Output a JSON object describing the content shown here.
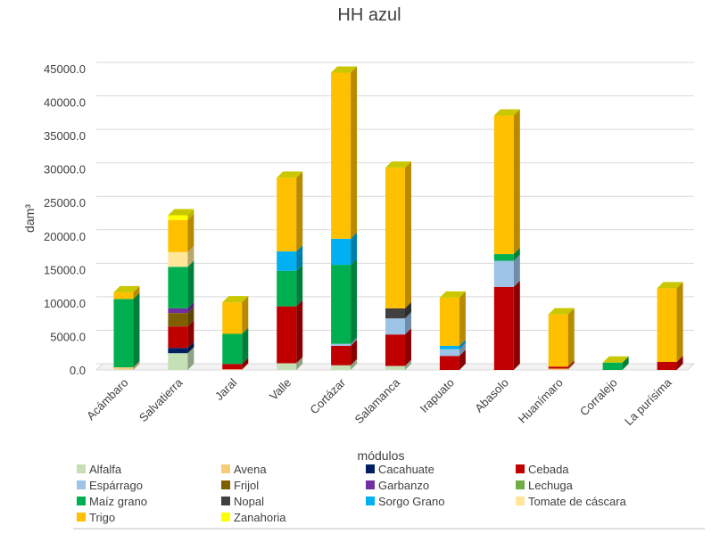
{
  "chart_data": {
    "type": "bar",
    "stacked": true,
    "title": "HH azul",
    "xlabel": "módulos",
    "ylabel": "dam³",
    "ylim": [
      0,
      45000
    ],
    "yticks": [
      "0.0",
      "5000.0",
      "10000.0",
      "15000.0",
      "20000.0",
      "25000.0",
      "30000.0",
      "35000.0",
      "40000.0",
      "45000.0"
    ],
    "grid": true,
    "legend_position": "bottom",
    "categories": [
      "Acámbaro",
      "Salvatierra",
      "Jaral",
      "Valle",
      "Cortázar",
      "Salamanca",
      "Irapuato",
      "Abasolo",
      "Huanímaro",
      "Corralejo",
      "La purísima"
    ],
    "series": [
      {
        "name": "Alfalfa",
        "color": "#c5e0b4",
        "values": [
          100,
          2500,
          0,
          1000,
          700,
          600,
          0,
          0,
          0,
          0,
          0
        ]
      },
      {
        "name": "Avena",
        "color": "#f8cb7c",
        "values": [
          300,
          0,
          100,
          0,
          0,
          0,
          0,
          0,
          200,
          0,
          0
        ]
      },
      {
        "name": "Cacahuate",
        "color": "#002060",
        "values": [
          0,
          800,
          0,
          0,
          0,
          0,
          0,
          0,
          0,
          0,
          0
        ]
      },
      {
        "name": "Cebada",
        "color": "#c00000",
        "values": [
          0,
          3200,
          800,
          8500,
          2900,
          4700,
          2100,
          12400,
          300,
          0,
          1200
        ]
      },
      {
        "name": "Espárrago",
        "color": "#9dc3e6",
        "values": [
          0,
          0,
          0,
          0,
          300,
          2400,
          1000,
          3900,
          0,
          0,
          0
        ]
      },
      {
        "name": "Frijol",
        "color": "#7f6000",
        "values": [
          0,
          2000,
          0,
          0,
          0,
          0,
          0,
          0,
          0,
          0,
          0
        ]
      },
      {
        "name": "Garbanzo",
        "color": "#7030a0",
        "values": [
          0,
          700,
          0,
          0,
          0,
          0,
          0,
          0,
          0,
          0,
          0
        ]
      },
      {
        "name": "Lechuga",
        "color": "#70ad47",
        "values": [
          0,
          0,
          0,
          0,
          0,
          0,
          0,
          0,
          0,
          0,
          0
        ]
      },
      {
        "name": "Maíz grano",
        "color": "#00b050",
        "values": [
          10200,
          6200,
          4500,
          5300,
          11800,
          0,
          0,
          1000,
          0,
          1100,
          0
        ]
      },
      {
        "name": "Nopal",
        "color": "#404040",
        "values": [
          0,
          0,
          0,
          0,
          0,
          1500,
          0,
          0,
          0,
          0,
          0
        ]
      },
      {
        "name": "Sorgo Grano",
        "color": "#00b0f0",
        "values": [
          0,
          0,
          0,
          2900,
          3900,
          0,
          500,
          0,
          0,
          0,
          0
        ]
      },
      {
        "name": "Tomate de cáscara",
        "color": "#ffe699",
        "values": [
          0,
          2200,
          0,
          0,
          0,
          0,
          0,
          0,
          0,
          0,
          0
        ]
      },
      {
        "name": "Trigo",
        "color": "#ffc000",
        "values": [
          1000,
          4800,
          4700,
          11000,
          24800,
          21000,
          7200,
          20700,
          7800,
          0,
          11000
        ]
      },
      {
        "name": "Zanahoria",
        "color": "#ffff00",
        "values": [
          0,
          700,
          0,
          0,
          0,
          0,
          0,
          0,
          0,
          0,
          0
        ]
      }
    ]
  }
}
